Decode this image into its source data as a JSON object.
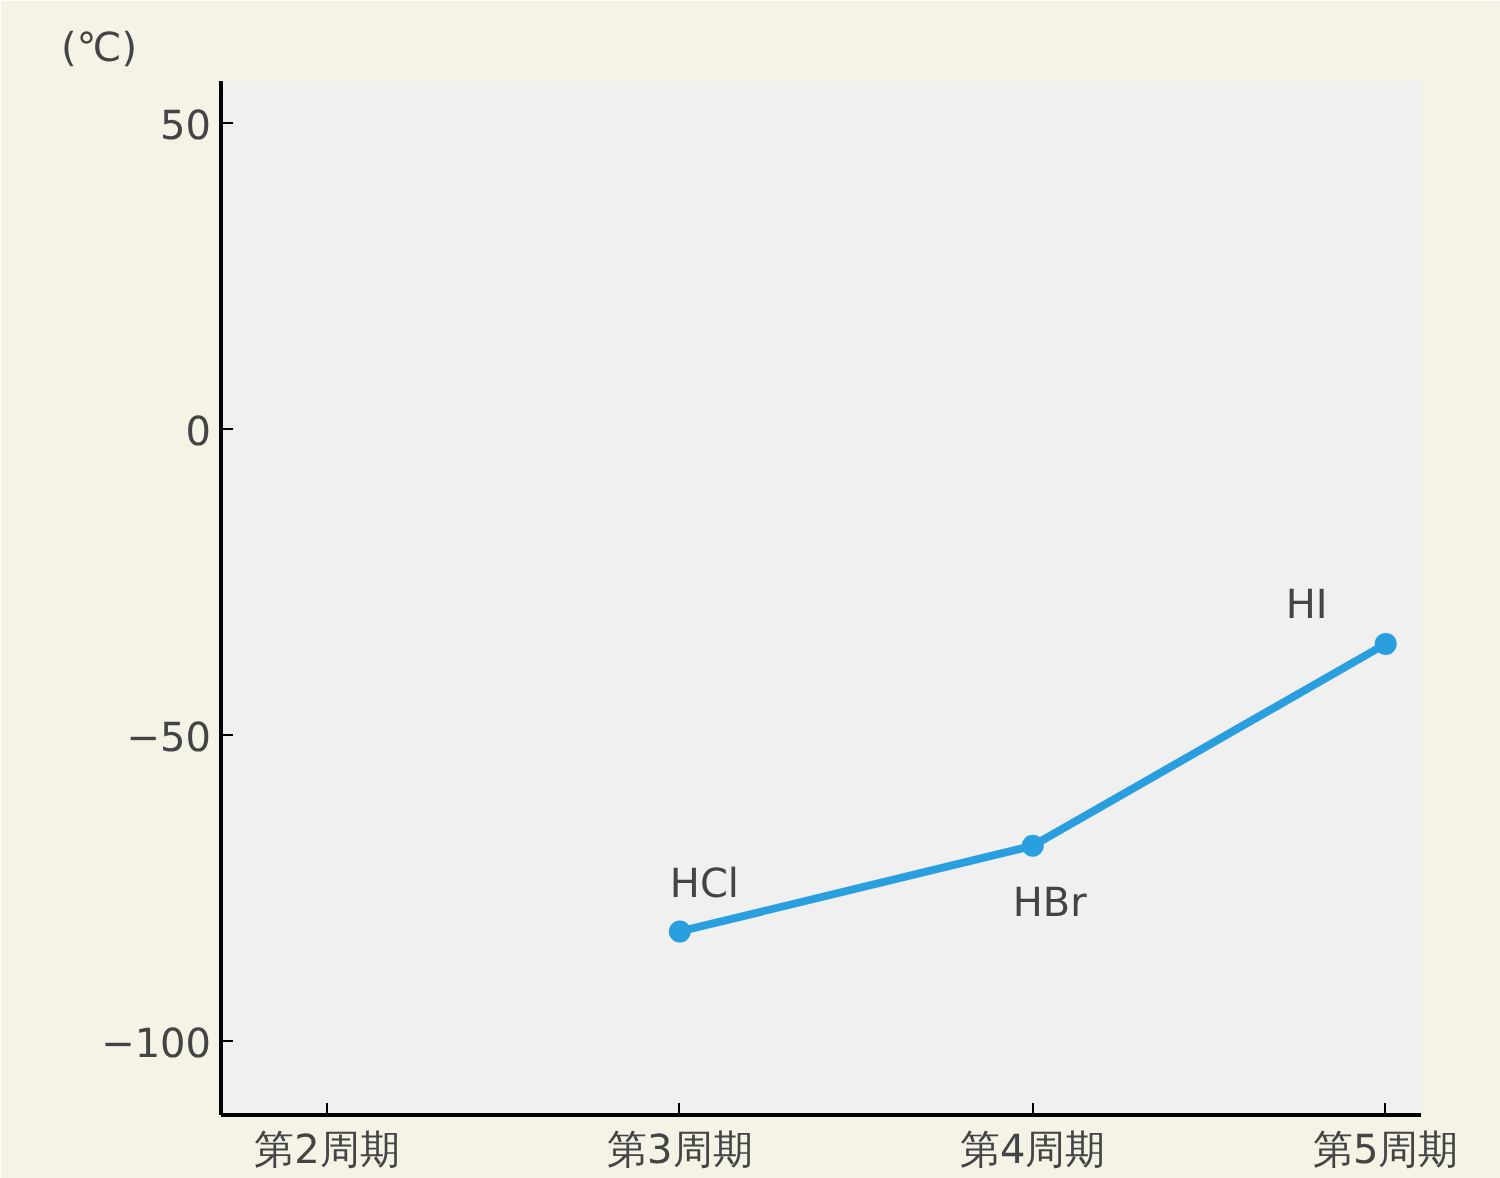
{
  "chart_data": {
    "type": "line",
    "ylabel": "(℃)",
    "categories": [
      "第2周期",
      "第3周期",
      "第4周期",
      "第5周期"
    ],
    "series": [
      {
        "color": "#2a9fe0",
        "values": [
          null,
          -82,
          -68,
          -35
        ]
      }
    ],
    "ylim": [
      -112,
      57
    ],
    "yticks": [
      -100,
      -50,
      0,
      50
    ],
    "grid": false,
    "marker": "circle",
    "line_style": "solid",
    "annotations": [
      {
        "text": "HCl",
        "x": "第3周期",
        "y": -82
      },
      {
        "text": "HBr",
        "x": "第4周期",
        "y": -68
      },
      {
        "text": "HI",
        "x": "第5周期",
        "y": -35
      }
    ]
  }
}
